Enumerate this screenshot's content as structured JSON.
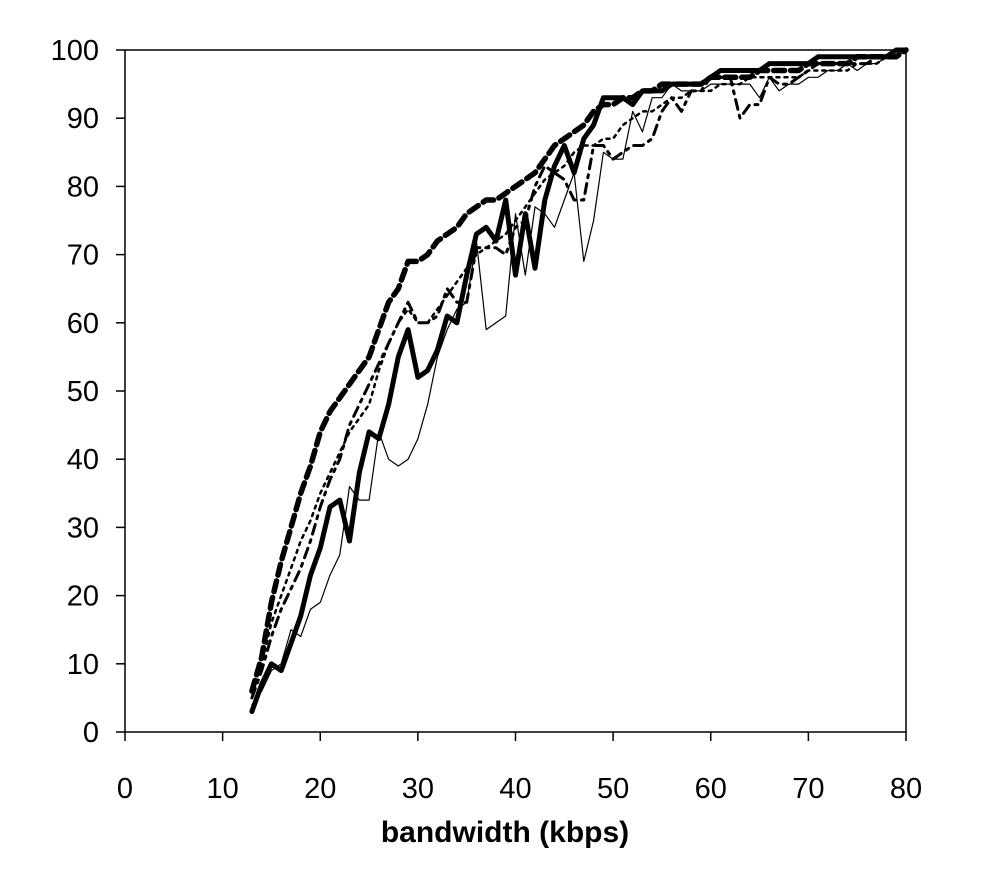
{
  "chart_data": {
    "type": "line",
    "title": "",
    "xlabel": "bandwidth (kbps)",
    "ylabel": "",
    "xlim": [
      0,
      80
    ],
    "ylim": [
      0,
      100
    ],
    "xticks": [
      0,
      10,
      20,
      30,
      40,
      50,
      60,
      70,
      80
    ],
    "yticks": [
      0,
      10,
      20,
      30,
      40,
      50,
      60,
      70,
      80,
      90,
      100
    ],
    "grid": false,
    "legend": "none",
    "series": [
      {
        "style": "solid-thick",
        "color": "#000000",
        "x": [
          13,
          14,
          15,
          16,
          17,
          18,
          19,
          20,
          21,
          22,
          23,
          24,
          25,
          26,
          27,
          28,
          29,
          30,
          31,
          32,
          33,
          34,
          35,
          36,
          37,
          38,
          39,
          40,
          41,
          42,
          43,
          44,
          45,
          46,
          47,
          48,
          49,
          50,
          51,
          52,
          53,
          54,
          55,
          56,
          57,
          58,
          59,
          60,
          61,
          62,
          63,
          64,
          65,
          66,
          67,
          68,
          69,
          70,
          71,
          72,
          73,
          74,
          75,
          76,
          77,
          78,
          79,
          80
        ],
        "y": [
          3,
          7,
          10,
          9,
          13,
          17,
          23,
          27,
          33,
          34,
          28,
          38,
          44,
          43,
          48,
          55,
          59,
          52,
          53,
          56,
          61,
          60,
          67,
          73,
          74,
          72,
          78,
          67,
          76,
          68,
          78,
          83,
          86,
          82,
          87,
          89,
          93,
          93,
          93,
          92,
          94,
          94,
          94,
          95,
          95,
          95,
          95,
          96,
          97,
          97,
          97,
          97,
          97,
          98,
          98,
          98,
          98,
          98,
          99,
          99,
          99,
          99,
          99,
          99,
          99,
          99,
          100,
          100
        ]
      },
      {
        "style": "solid-thin",
        "color": "#000000",
        "x": [
          13,
          14,
          15,
          16,
          17,
          18,
          19,
          20,
          21,
          22,
          23,
          24,
          25,
          26,
          27,
          28,
          29,
          30,
          31,
          32,
          33,
          34,
          35,
          36,
          37,
          38,
          39,
          40,
          41,
          42,
          43,
          44,
          45,
          46,
          47,
          48,
          49,
          50,
          51,
          52,
          53,
          54,
          55,
          56,
          57,
          58,
          59,
          60,
          61,
          62,
          63,
          64,
          65,
          66,
          67,
          68,
          69,
          70,
          71,
          72,
          73,
          74,
          75,
          76,
          77,
          78,
          79,
          80
        ],
        "y": [
          4,
          6,
          9,
          10,
          15,
          14,
          18,
          19,
          23,
          26,
          36,
          34,
          34,
          44,
          40,
          39,
          40,
          43,
          48,
          55,
          59,
          62,
          63,
          72,
          59,
          60,
          61,
          76,
          67,
          77,
          76,
          74,
          78,
          82,
          69,
          75,
          85,
          84,
          84,
          91,
          88,
          93,
          93,
          95,
          94,
          94,
          94,
          95,
          95,
          95,
          95,
          95,
          93,
          96,
          94,
          95,
          95,
          96,
          96,
          97,
          97,
          98,
          97,
          98,
          98,
          99,
          99,
          100
        ]
      },
      {
        "style": "dashed-thick",
        "color": "#000000",
        "x": [
          13,
          14,
          15,
          16,
          17,
          18,
          19,
          20,
          21,
          22,
          23,
          24,
          25,
          26,
          27,
          28,
          29,
          30,
          31,
          32,
          33,
          34,
          35,
          36,
          37,
          38,
          39,
          40,
          41,
          42,
          43,
          44,
          45,
          46,
          47,
          48,
          49,
          50,
          51,
          52,
          53,
          54,
          55,
          56,
          57,
          58,
          59,
          60,
          61,
          62,
          63,
          64,
          65,
          66,
          67,
          68,
          69,
          70,
          71,
          72,
          73,
          74,
          75,
          76,
          77,
          78,
          79,
          80
        ],
        "y": [
          6,
          11,
          19,
          25,
          30,
          35,
          39,
          44,
          47,
          49,
          51,
          53,
          55,
          59,
          63,
          65,
          69,
          69,
          70,
          72,
          73,
          74,
          76,
          77,
          78,
          78,
          79,
          80,
          81,
          82,
          84,
          86,
          87,
          88,
          89,
          91,
          92,
          92,
          93,
          93,
          94,
          94,
          95,
          95,
          95,
          95,
          95,
          96,
          96,
          96,
          96,
          96,
          97,
          97,
          97,
          97,
          97,
          98,
          98,
          98,
          98,
          98,
          99,
          99,
          99,
          99,
          99,
          100
        ]
      },
      {
        "style": "dash-dot",
        "color": "#000000",
        "x": [
          13,
          14,
          15,
          16,
          17,
          18,
          19,
          20,
          21,
          22,
          23,
          24,
          25,
          26,
          27,
          28,
          29,
          30,
          31,
          32,
          33,
          34,
          35,
          36,
          37,
          38,
          39,
          40,
          41,
          42,
          43,
          44,
          45,
          46,
          47,
          48,
          49,
          50,
          51,
          52,
          53,
          54,
          55,
          56,
          57,
          58,
          59,
          60,
          61,
          62,
          63,
          64,
          65,
          66,
          67,
          68,
          69,
          70,
          71,
          72,
          73,
          74,
          75,
          76,
          77,
          78,
          79,
          80
        ],
        "y": [
          5,
          9,
          14,
          18,
          21,
          24,
          28,
          33,
          37,
          40,
          45,
          48,
          51,
          54,
          57,
          60,
          63,
          60,
          60,
          61,
          65,
          63,
          63,
          71,
          71,
          71,
          70,
          74,
          75,
          80,
          83,
          82,
          81,
          78,
          78,
          86,
          86,
          84,
          85,
          86,
          86,
          87,
          91,
          93,
          91,
          94,
          94,
          96,
          96,
          96,
          90,
          92,
          92,
          96,
          95,
          95,
          96,
          97,
          98,
          98,
          98,
          98,
          98,
          98,
          99,
          99,
          100,
          100
        ]
      },
      {
        "style": "dotted",
        "color": "#000000",
        "x": [
          13,
          14,
          15,
          16,
          17,
          18,
          19,
          20,
          21,
          22,
          23,
          24,
          25,
          26,
          27,
          28,
          29,
          30,
          31,
          32,
          33,
          34,
          35,
          36,
          37,
          38,
          39,
          40,
          41,
          42,
          43,
          44,
          45,
          46,
          47,
          48,
          49,
          50,
          51,
          52,
          53,
          54,
          55,
          56,
          57,
          58,
          59,
          60,
          61,
          62,
          63,
          64,
          65,
          66,
          67,
          68,
          69,
          70,
          71,
          72,
          73,
          74,
          75,
          76,
          77,
          78,
          79,
          80
        ],
        "y": [
          5,
          10,
          16,
          20,
          24,
          28,
          31,
          35,
          38,
          41,
          44,
          46,
          48,
          53,
          57,
          60,
          62,
          60,
          60,
          62,
          64,
          66,
          68,
          70,
          71,
          72,
          73,
          75,
          77,
          79,
          81,
          82,
          83,
          85,
          86,
          86,
          87,
          87,
          89,
          90,
          91,
          91,
          92,
          93,
          93,
          94,
          94,
          94,
          95,
          95,
          95,
          96,
          96,
          96,
          96,
          96,
          96,
          97,
          97,
          97,
          97,
          97,
          98,
          98,
          98,
          99,
          99,
          100
        ]
      }
    ]
  }
}
